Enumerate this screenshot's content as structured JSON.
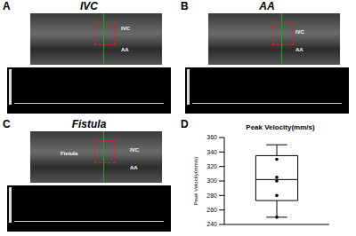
{
  "panels": [
    {
      "letter": "A",
      "title": "IVC",
      "labels": [
        "IVC",
        "AA"
      ]
    },
    {
      "letter": "B",
      "title": "AA",
      "labels": [
        "IVC",
        "AA"
      ]
    },
    {
      "letter": "C",
      "title": "Fistula",
      "labels": [
        "Fistula",
        "IVC",
        "AA"
      ]
    }
  ],
  "chart_data": {
    "type": "box",
    "annotations": [
      "D"
    ],
    "title": "Peak Velocity(mm/s)",
    "ylabel": "Peak Velocity(mm/s)",
    "ylim": [
      240,
      360
    ],
    "yticks": [
      240,
      260,
      280,
      300,
      320,
      340,
      360
    ],
    "tick_labels": "y",
    "box": {
      "min": 250,
      "q1": 273,
      "median": 302,
      "q3": 335,
      "max": 350
    },
    "points": [
      330,
      305,
      300,
      280,
      250
    ],
    "color": "#000000"
  }
}
